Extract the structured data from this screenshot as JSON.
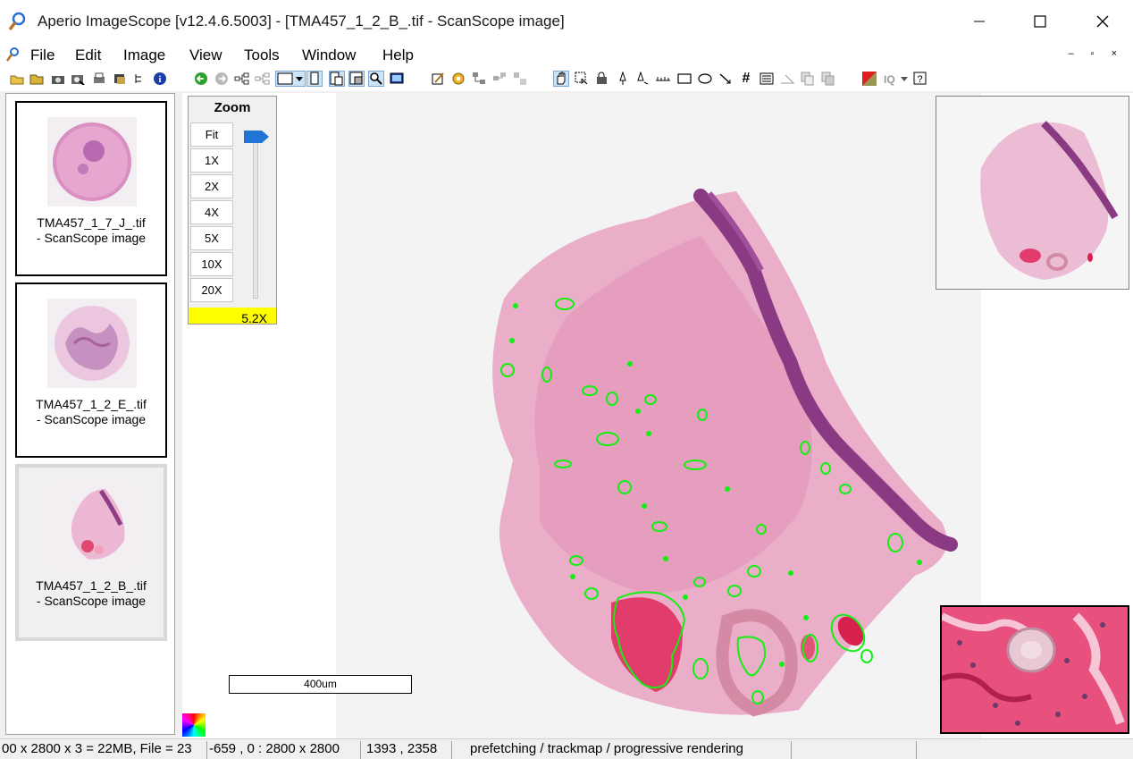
{
  "window": {
    "title": "Aperio ImageScope [v12.4.6.5003] - [TMA457_1_2_B_.tif - ScanScope image]",
    "minimize": "–",
    "maximize": "☐",
    "close": "✕"
  },
  "menu": {
    "items": [
      "File",
      "Edit",
      "Image",
      "View",
      "Tools",
      "Window",
      "Help"
    ],
    "mdi_controls": "– ▫ ×"
  },
  "toolbar": {
    "icons": [
      "open-folder-icon",
      "open-icon",
      "camera-icon",
      "snapshot-icon",
      "print-icon",
      "export-icon",
      "tree-icon",
      "info-icon",
      "back-icon",
      "forward-icon",
      "flow-icon",
      "flow2-icon",
      "frame-icon",
      "page-icon",
      "split-icon",
      "split2-icon",
      "zoom-icon",
      "monitor-icon",
      "edit-icon",
      "gear-icon",
      "network-icon",
      "network2-icon",
      "network3-icon",
      "hand-icon",
      "select-icon",
      "lock-icon",
      "pen-icon",
      "pen2-icon",
      "ruler-icon",
      "rectangle-icon",
      "ellipse-icon",
      "arrow-icon",
      "grid-icon",
      "list-icon",
      "angle-icon",
      "copy-icon",
      "copy2-icon",
      "color-icon",
      "iq-icon",
      "help-icon"
    ]
  },
  "thumbnails": [
    {
      "label_line1": "TMA457_1_7_J_.tif",
      "label_line2": "- ScanScope image"
    },
    {
      "label_line1": "TMA457_1_2_E_.tif",
      "label_line2": "- ScanScope image"
    },
    {
      "label_line1": "TMA457_1_2_B_.tif",
      "label_line2": "- ScanScope image"
    }
  ],
  "zoom": {
    "title": "Zoom",
    "buttons": [
      "Fit",
      "1X",
      "2X",
      "4X",
      "5X",
      "10X",
      "20X"
    ],
    "current": "5.2X"
  },
  "scalebar": {
    "label": "400um"
  },
  "status": {
    "seg1": "00 x 2800 x 3 = 22MB, File = 23",
    "seg2": "-659 , 0 : 2800 x 2800",
    "seg3": "1393 , 2358",
    "seg4": "prefetching / trackmap / progressive rendering"
  }
}
